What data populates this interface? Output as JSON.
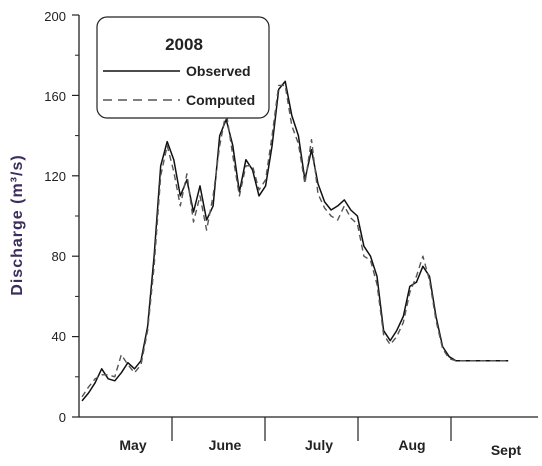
{
  "chart_data": {
    "type": "line",
    "title": "2008",
    "ylabel": "Discharge (m³/s)",
    "xlabel": "",
    "ylim": [
      0,
      200
    ],
    "yticks": [
      "0",
      "40",
      "80",
      "120",
      "160",
      "200"
    ],
    "x_months": [
      "May",
      "June",
      "July",
      "Aug",
      "Sept"
    ],
    "x_domain_days": [
      0,
      133
    ],
    "legend": {
      "title": "2008",
      "placement": "top-left"
    },
    "series": [
      {
        "name": "Observed",
        "style": "solid",
        "color": "#111111",
        "x": [
          0,
          2,
          4,
          6,
          8,
          10,
          12,
          14,
          16,
          18,
          20,
          22,
          24,
          26,
          28,
          30,
          32,
          34,
          36,
          38,
          40,
          42,
          44,
          46,
          48,
          50,
          52,
          54,
          56,
          58,
          60,
          62,
          64,
          66,
          68,
          70,
          72,
          74,
          76,
          78,
          80,
          82,
          84,
          86,
          88,
          90,
          92,
          94,
          96,
          98,
          100,
          102,
          104,
          106,
          108,
          110,
          112,
          114,
          116,
          118,
          120,
          122,
          124,
          126,
          128,
          130
        ],
        "y": [
          8,
          12,
          17,
          24,
          19,
          18,
          22,
          27,
          24,
          28,
          45,
          80,
          125,
          137,
          128,
          110,
          118,
          102,
          115,
          98,
          105,
          140,
          148,
          135,
          112,
          128,
          123,
          110,
          115,
          135,
          163,
          167,
          150,
          140,
          118,
          133,
          116,
          107,
          103,
          105,
          108,
          103,
          100,
          85,
          80,
          70,
          43,
          38,
          43,
          50,
          65,
          67,
          75,
          70,
          50,
          35,
          30,
          28,
          28,
          28,
          28,
          28,
          28,
          28,
          28,
          28
        ]
      },
      {
        "name": "Computed",
        "style": "dashed",
        "color": "#555555",
        "x": [
          0,
          2,
          4,
          6,
          8,
          10,
          12,
          14,
          16,
          18,
          20,
          22,
          24,
          26,
          28,
          30,
          32,
          34,
          36,
          38,
          40,
          42,
          44,
          46,
          48,
          50,
          52,
          54,
          56,
          58,
          60,
          62,
          64,
          66,
          68,
          70,
          72,
          74,
          76,
          78,
          80,
          82,
          84,
          86,
          88,
          90,
          92,
          94,
          96,
          98,
          100,
          102,
          104,
          106,
          108,
          110,
          112,
          114,
          116,
          118,
          120,
          122,
          124,
          126,
          128,
          130
        ],
        "y": [
          10,
          15,
          19,
          21,
          21,
          20,
          31,
          26,
          22,
          26,
          43,
          75,
          120,
          135,
          122,
          105,
          121,
          97,
          110,
          93,
          110,
          135,
          152,
          130,
          110,
          125,
          125,
          113,
          118,
          140,
          165,
          165,
          145,
          136,
          116,
          138,
          111,
          104,
          100,
          98,
          105,
          99,
          96,
          80,
          78,
          66,
          41,
          36,
          40,
          47,
          62,
          70,
          80,
          68,
          48,
          34,
          29,
          28,
          28,
          28,
          28,
          28,
          28,
          28,
          28,
          28
        ]
      }
    ]
  }
}
